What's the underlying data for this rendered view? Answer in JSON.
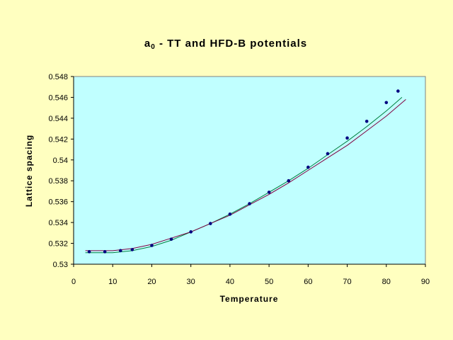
{
  "chart_data": {
    "type": "scatter",
    "title": "a",
    "title_subscript": "0",
    "title_rest": " - TT and HFD-B potentials",
    "xlabel": "Temperature",
    "ylabel": "Lattice spacing",
    "xlim": [
      0,
      90
    ],
    "ylim": [
      0.53,
      0.548
    ],
    "x_ticks": [
      "0",
      "10",
      "20",
      "30",
      "40",
      "50",
      "60",
      "70",
      "80",
      "90"
    ],
    "y_ticks": [
      "0.53",
      "0.532",
      "0.534",
      "0.536",
      "0.538",
      "0.54",
      "0.542",
      "0.544",
      "0.546",
      "0.548"
    ],
    "grid": false,
    "legend": "none",
    "colors": {
      "background": "#ffffc0",
      "plot_area": "#c0ffff",
      "points": "#000080",
      "green_line": "#008040",
      "magenta_line": "#800040"
    },
    "series": [
      {
        "kind": "points",
        "x": [
          4,
          8,
          12,
          15,
          20,
          25,
          30,
          35,
          40,
          45,
          50,
          55,
          60,
          65,
          70,
          75,
          80,
          83
        ],
        "y": [
          0.5312,
          0.5312,
          0.5313,
          0.5314,
          0.5318,
          0.5324,
          0.5331,
          0.5339,
          0.5348,
          0.5358,
          0.5369,
          0.538,
          0.5393,
          0.5406,
          0.5421,
          0.5437,
          0.5455,
          0.5466
        ]
      },
      {
        "kind": "line",
        "x": [
          3,
          10,
          15,
          20,
          25,
          30,
          35,
          40,
          45,
          50,
          55,
          60,
          65,
          70,
          75,
          80,
          84
        ],
        "y": [
          0.5311,
          0.5311,
          0.5313,
          0.5317,
          0.5323,
          0.5331,
          0.5339,
          0.5348,
          0.5358,
          0.5369,
          0.538,
          0.5392,
          0.5405,
          0.5418,
          0.5432,
          0.5447,
          0.546
        ]
      },
      {
        "kind": "line",
        "x": [
          3,
          10,
          15,
          20,
          25,
          30,
          35,
          40,
          45,
          50,
          55,
          60,
          65,
          70,
          75,
          80,
          85
        ],
        "y": [
          0.5313,
          0.5313,
          0.5315,
          0.5319,
          0.5325,
          0.5331,
          0.5339,
          0.5347,
          0.5357,
          0.5367,
          0.5378,
          0.539,
          0.5402,
          0.5414,
          0.5428,
          0.5442,
          0.5458
        ]
      }
    ]
  }
}
